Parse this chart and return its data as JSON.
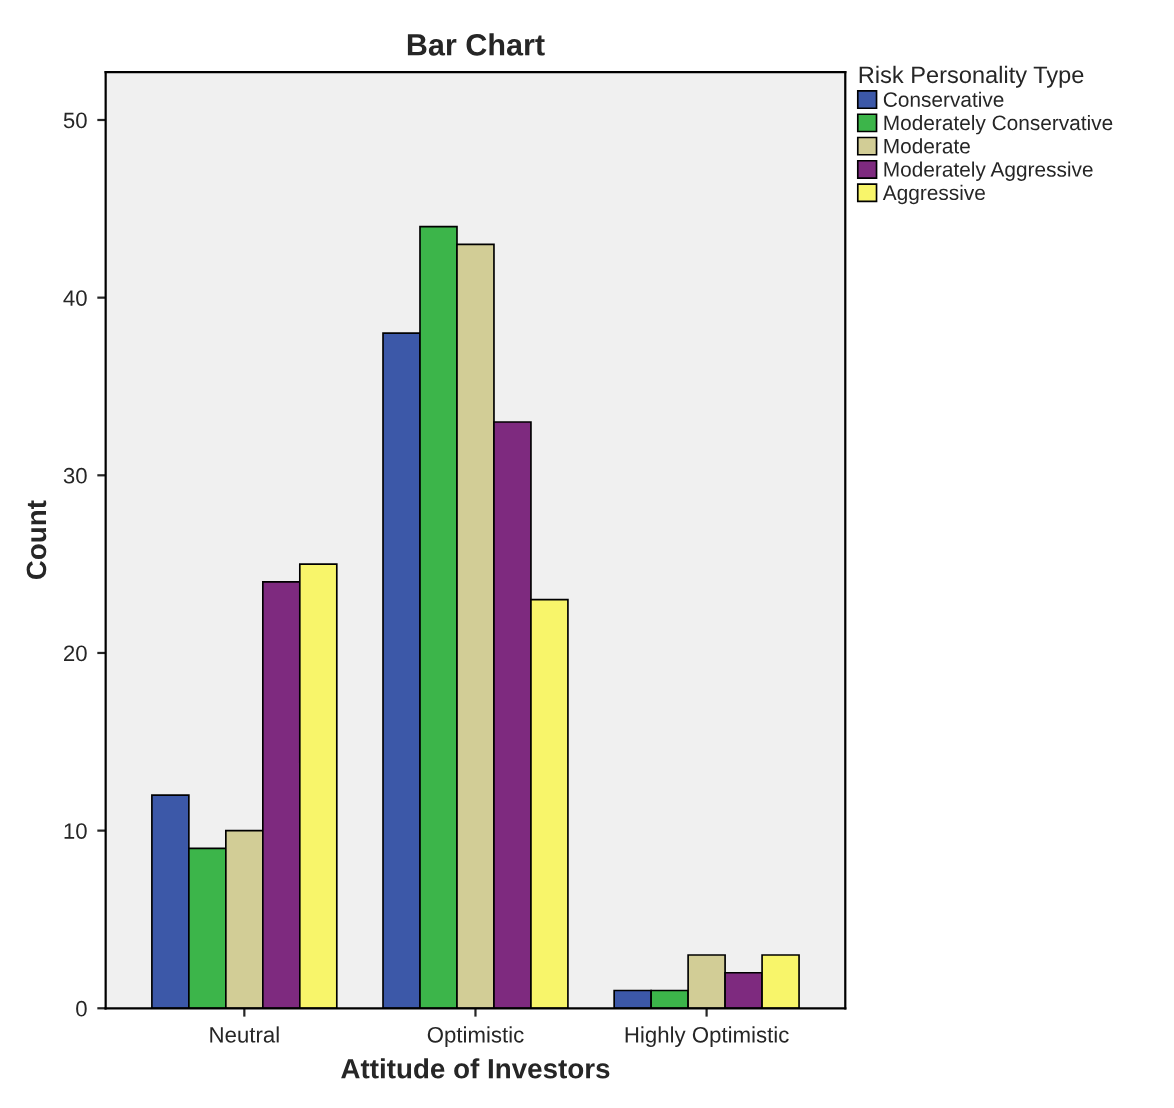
{
  "chart_data": {
    "type": "bar",
    "title": "Bar Chart",
    "xlabel": "Attitude of Investors",
    "ylabel": "Count",
    "legend_title": "Risk Personality Type",
    "categories": [
      "Neutral",
      "Optimistic",
      "Highly Optimistic"
    ],
    "series": [
      {
        "name": "Conservative",
        "color": "#3c58a8",
        "values": [
          12,
          38,
          1
        ]
      },
      {
        "name": "Moderately Conservative",
        "color": "#3cb54a",
        "values": [
          9,
          44,
          1
        ]
      },
      {
        "name": "Moderate",
        "color": "#d2cd96",
        "values": [
          10,
          43,
          3
        ]
      },
      {
        "name": "Moderately Aggressive",
        "color": "#7e2a7f",
        "values": [
          24,
          33,
          2
        ]
      },
      {
        "name": "Aggressive",
        "color": "#f8f56a",
        "values": [
          25,
          23,
          3
        ]
      }
    ],
    "ylim": [
      0,
      52.7
    ],
    "yticks": [
      0,
      10,
      20,
      30,
      40,
      50
    ],
    "grid": false,
    "legend": "top right"
  }
}
